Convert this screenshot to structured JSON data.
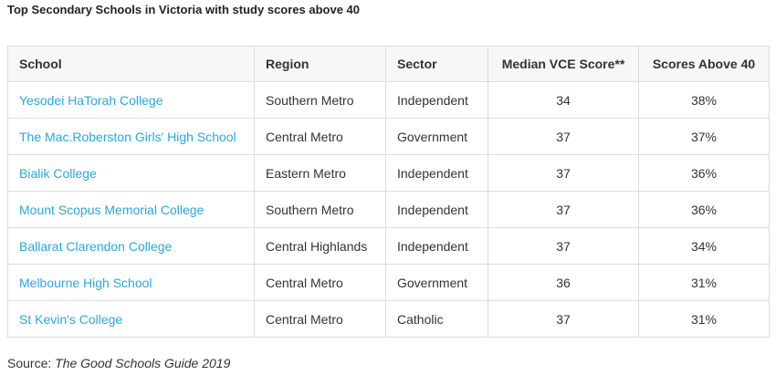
{
  "title": "Top Secondary Schools in Victoria with study scores above 40",
  "table": {
    "headers": {
      "school": "School",
      "region": "Region",
      "sector": "Sector",
      "median": "Median VCE Score**",
      "above": "Scores Above 40"
    },
    "rows": [
      {
        "school": "Yesodei HaTorah College",
        "region": "Southern Metro",
        "sector": "Independent",
        "median": "34",
        "above": "38%"
      },
      {
        "school": "The Mac.Roberston Girls' High School",
        "region": "Central Metro",
        "sector": "Government",
        "median": "37",
        "above": "37%"
      },
      {
        "school": "Bialik College",
        "region": "Eastern Metro",
        "sector": "Independent",
        "median": "37",
        "above": "36%"
      },
      {
        "school": "Mount Scopus Memorial College",
        "region": "Southern Metro",
        "sector": "Independent",
        "median": "37",
        "above": "36%"
      },
      {
        "school": "Ballarat Clarendon College",
        "region": "Central Highlands",
        "sector": "Independent",
        "median": "37",
        "above": "34%"
      },
      {
        "school": "Melbourne High School",
        "region": "Central Metro",
        "sector": "Government",
        "median": "36",
        "above": "31%"
      },
      {
        "school": "St Kevin's College",
        "region": "Central Metro",
        "sector": "Catholic",
        "median": "37",
        "above": "31%"
      }
    ]
  },
  "source": {
    "prefix": "Source:",
    "title": "The Good Schools Guide 2019"
  },
  "colors": {
    "link": "#2aa7df",
    "header_bg": "#f7f7f7",
    "border": "#dcdcdc"
  }
}
